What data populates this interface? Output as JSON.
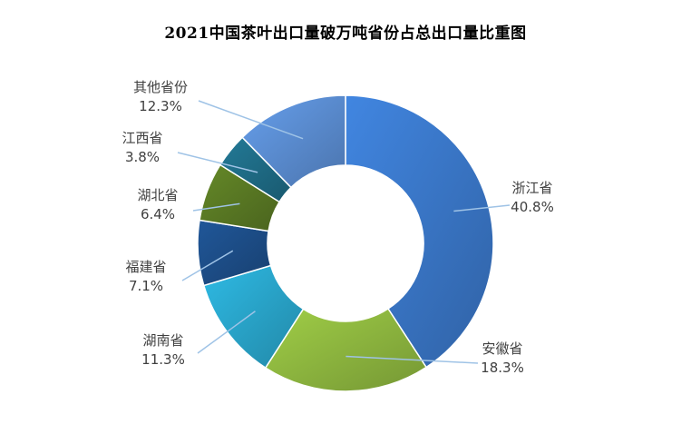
{
  "chart_data": {
    "type": "pie",
    "donut": true,
    "title": "2021中国茶叶出口量破万吨省份占总出口量比重图",
    "legend": "none",
    "slices": [
      {
        "name": "浙江省",
        "value": 40.8,
        "label": "40.8%",
        "color": "#3a78c9"
      },
      {
        "name": "安徽省",
        "value": 18.3,
        "label": "18.3%",
        "color": "#8fb83f"
      },
      {
        "name": "湖南省",
        "value": 11.3,
        "label": "11.3%",
        "color": "#29a6cc"
      },
      {
        "name": "福建省",
        "value": 7.1,
        "label": "7.1%",
        "color": "#1d4e89"
      },
      {
        "name": "湖北省",
        "value": 6.4,
        "label": "6.4%",
        "color": "#5a7a24"
      },
      {
        "name": "江西省",
        "value": 3.8,
        "label": "3.8%",
        "color": "#1f6d87"
      },
      {
        "name": "其他省份",
        "value": 12.3,
        "label": "12.3%",
        "color": "#5b8ed3"
      }
    ]
  }
}
